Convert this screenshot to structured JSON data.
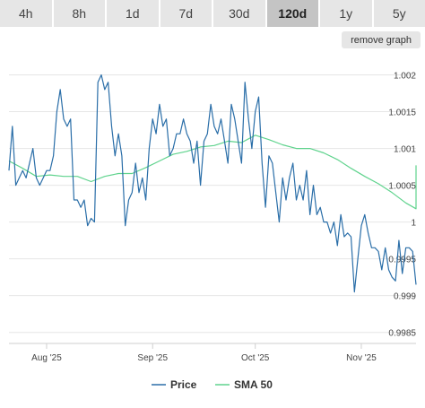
{
  "tabs": [
    {
      "label": "4h"
    },
    {
      "label": "8h"
    },
    {
      "label": "1d"
    },
    {
      "label": "7d"
    },
    {
      "label": "30d"
    },
    {
      "label": "120d",
      "active": true
    },
    {
      "label": "1y"
    },
    {
      "label": "5y"
    }
  ],
  "remove_graph_label": "remove graph",
  "colors": {
    "price": "#2a6ea8",
    "sma": "#5fd38d",
    "grid": "#e6e6e6"
  },
  "chart_data": {
    "type": "line",
    "title": "",
    "xlabel": "",
    "ylabel": "",
    "x_ticks": [
      "Aug '25",
      "Sep '25",
      "Oct '25",
      "Nov '25"
    ],
    "y_ticks": [
      "0.9985",
      "0.999",
      "0.9995",
      "1",
      "1.0005",
      "1.001",
      "1.0015",
      "1.002"
    ],
    "ylim": [
      0.99835,
      1.00225
    ],
    "xlim": [
      "2025-07-21",
      "2025-11-17"
    ],
    "grid": true,
    "legend_position": "bottom-center",
    "series": [
      {
        "name": "Price",
        "color": "#2a6ea8",
        "x": [
          "2025-07-21",
          "2025-07-22",
          "2025-07-23",
          "2025-07-24",
          "2025-07-25",
          "2025-07-26",
          "2025-07-27",
          "2025-07-28",
          "2025-07-29",
          "2025-07-30",
          "2025-07-31",
          "2025-08-01",
          "2025-08-02",
          "2025-08-03",
          "2025-08-04",
          "2025-08-05",
          "2025-08-06",
          "2025-08-07",
          "2025-08-08",
          "2025-08-09",
          "2025-08-10",
          "2025-08-11",
          "2025-08-12",
          "2025-08-13",
          "2025-08-14",
          "2025-08-15",
          "2025-08-16",
          "2025-08-17",
          "2025-08-18",
          "2025-08-19",
          "2025-08-20",
          "2025-08-21",
          "2025-08-22",
          "2025-08-23",
          "2025-08-24",
          "2025-08-25",
          "2025-08-26",
          "2025-08-27",
          "2025-08-28",
          "2025-08-29",
          "2025-08-30",
          "2025-08-31",
          "2025-09-01",
          "2025-09-02",
          "2025-09-03",
          "2025-09-04",
          "2025-09-05",
          "2025-09-06",
          "2025-09-07",
          "2025-09-08",
          "2025-09-09",
          "2025-09-10",
          "2025-09-11",
          "2025-09-12",
          "2025-09-13",
          "2025-09-14",
          "2025-09-15",
          "2025-09-16",
          "2025-09-17",
          "2025-09-18",
          "2025-09-19",
          "2025-09-20",
          "2025-09-21",
          "2025-09-22",
          "2025-09-23",
          "2025-09-24",
          "2025-09-25",
          "2025-09-26",
          "2025-09-27",
          "2025-09-28",
          "2025-09-29",
          "2025-09-30",
          "2025-10-01",
          "2025-10-02",
          "2025-10-03",
          "2025-10-04",
          "2025-10-05",
          "2025-10-06",
          "2025-10-07",
          "2025-10-08",
          "2025-10-09",
          "2025-10-10",
          "2025-10-11",
          "2025-10-12",
          "2025-10-13",
          "2025-10-14",
          "2025-10-15",
          "2025-10-16",
          "2025-10-17",
          "2025-10-18",
          "2025-10-19",
          "2025-10-20",
          "2025-10-21",
          "2025-10-22",
          "2025-10-23",
          "2025-10-24",
          "2025-10-25",
          "2025-10-26",
          "2025-10-27",
          "2025-10-28",
          "2025-10-29",
          "2025-10-30",
          "2025-10-31",
          "2025-11-01",
          "2025-11-02",
          "2025-11-03",
          "2025-11-04",
          "2025-11-05",
          "2025-11-06",
          "2025-11-07",
          "2025-11-08",
          "2025-11-09",
          "2025-11-10",
          "2025-11-11",
          "2025-11-12",
          "2025-11-13",
          "2025-11-14",
          "2025-11-15",
          "2025-11-16",
          "2025-11-17"
        ],
        "y": [
          1.0007,
          1.0013,
          1.0005,
          1.0006,
          1.0007,
          1.0006,
          1.0008,
          1.001,
          1.0006,
          1.0005,
          1.0006,
          1.0007,
          1.0007,
          1.0009,
          1.0015,
          1.0018,
          1.0014,
          1.0013,
          1.0014,
          1.0003,
          1.0003,
          1.0002,
          1.0003,
          0.99995,
          1.00005,
          1.0,
          1.0019,
          1.002,
          1.0018,
          1.0019,
          1.0013,
          1.0009,
          1.0012,
          1.0009,
          0.99995,
          1.0003,
          1.0004,
          1.0008,
          1.0004,
          1.0006,
          1.0003,
          1.001,
          1.0014,
          1.0012,
          1.0016,
          1.0013,
          1.0014,
          1.0009,
          1.001,
          1.0012,
          1.0012,
          1.0014,
          1.0012,
          1.0011,
          1.0008,
          1.0011,
          1.0005,
          1.0011,
          1.0012,
          1.0016,
          1.0013,
          1.0012,
          1.0014,
          1.0011,
          1.0008,
          1.0016,
          1.0014,
          1.0011,
          1.0008,
          1.0019,
          1.0014,
          1.001,
          1.0015,
          1.0017,
          1.0008,
          1.0002,
          1.0009,
          1.0008,
          1.0004,
          1.0,
          1.0006,
          1.0003,
          1.0006,
          1.0008,
          1.0003,
          1.0005,
          1.0003,
          1.0007,
          1.0001,
          1.0005,
          1.0001,
          1.0002,
          1.0,
          1.0,
          0.99985,
          1.0,
          0.99968,
          1.0001,
          0.9998,
          0.99985,
          0.9998,
          0.99905,
          0.9995,
          0.99995,
          1.0001,
          0.99985,
          0.99965,
          0.99965,
          0.9996,
          0.99935,
          0.99965,
          0.99935,
          0.99925,
          0.9992,
          0.99975,
          0.9993,
          0.99965,
          0.99965,
          0.9996,
          0.99915
        ]
      },
      {
        "name": "SMA 50",
        "color": "#5fd38d",
        "x": [
          "2025-07-21",
          "2025-07-25",
          "2025-07-29",
          "2025-08-02",
          "2025-08-06",
          "2025-08-10",
          "2025-08-14",
          "2025-08-18",
          "2025-08-22",
          "2025-08-26",
          "2025-08-30",
          "2025-09-03",
          "2025-09-07",
          "2025-09-11",
          "2025-09-15",
          "2025-09-19",
          "2025-09-23",
          "2025-09-27",
          "2025-10-01",
          "2025-10-05",
          "2025-10-09",
          "2025-10-13",
          "2025-10-17",
          "2025-10-21",
          "2025-10-25",
          "2025-10-29",
          "2025-11-02",
          "2025-11-06",
          "2025-11-10",
          "2025-11-14",
          "2025-11-17",
          "2025-11-17"
        ],
        "y": [
          1.00083,
          1.00073,
          1.00062,
          1.00064,
          1.00062,
          1.00062,
          1.00055,
          1.00062,
          1.00066,
          1.00066,
          1.00074,
          1.00083,
          1.00092,
          1.00096,
          1.00102,
          1.00104,
          1.0011,
          1.00108,
          1.00118,
          1.00112,
          1.00105,
          1.001,
          1.001,
          1.00094,
          1.00085,
          1.00073,
          1.00062,
          1.00052,
          1.0004,
          1.00026,
          1.00018,
          1.00077
        ]
      }
    ]
  }
}
